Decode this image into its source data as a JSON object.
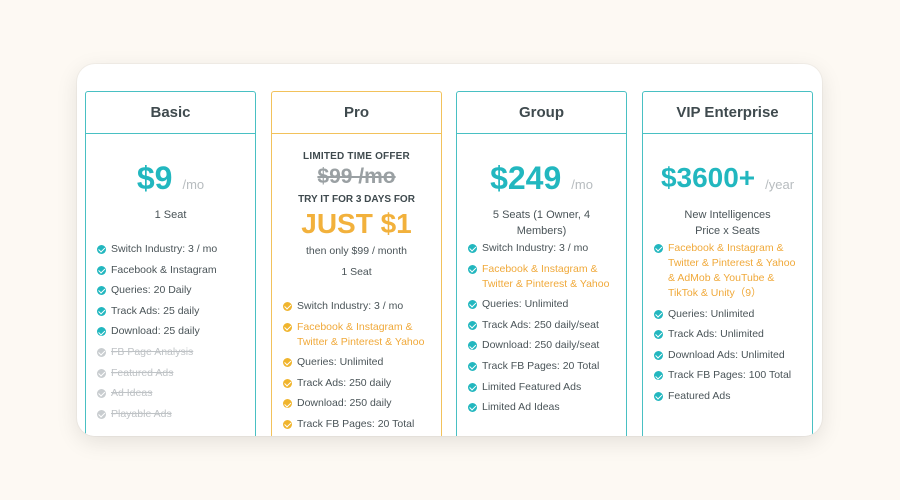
{
  "plans": [
    {
      "name": "Basic",
      "price": "$9",
      "period": "/mo",
      "seats": "1 Seat",
      "features": [
        {
          "text": "Switch Industry: 3 / mo",
          "state": "included"
        },
        {
          "text": "Facebook & Instagram",
          "state": "included"
        },
        {
          "text": "Queries: 20 Daily",
          "state": "included"
        },
        {
          "text": "Track Ads: 25 daily",
          "state": "included"
        },
        {
          "text": "Download: 25 daily",
          "state": "included"
        },
        {
          "text": "FB Page Analysis",
          "state": "excluded"
        },
        {
          "text": "Featured Ads",
          "state": "excluded"
        },
        {
          "text": "Ad Ideas",
          "state": "excluded"
        },
        {
          "text": "Playable Ads",
          "state": "excluded"
        }
      ]
    },
    {
      "name": "Pro",
      "offer_title": "LIMITED TIME OFFER",
      "old_price": "$99 /mo",
      "trial": "TRY IT FOR 3 DAYS FOR",
      "promo_price": "JUST $1",
      "then": "then only $99 / month",
      "seats": "1 Seat",
      "features": [
        {
          "text": "Switch Industry: 3 / mo",
          "state": "included"
        },
        {
          "text": "Facebook & Instagram & Twitter & Pinterest & Yahoo",
          "state": "highlight"
        },
        {
          "text": "Queries: Unlimited",
          "state": "included"
        },
        {
          "text": "Track Ads: 250 daily",
          "state": "included"
        },
        {
          "text": "Download: 250 daily",
          "state": "included"
        },
        {
          "text": "Track FB Pages: 20 Total",
          "state": "included"
        }
      ]
    },
    {
      "name": "Group",
      "price": "$249",
      "period": "/mo",
      "seats": "5 Seats (1 Owner, 4 Members)",
      "features": [
        {
          "text": "Switch Industry: 3 / mo",
          "state": "included"
        },
        {
          "text": "Facebook & Instagram & Twitter & Pinterest & Yahoo",
          "state": "highlight"
        },
        {
          "text": "Queries: Unlimited",
          "state": "included"
        },
        {
          "text": "Track Ads: 250 daily/seat",
          "state": "included"
        },
        {
          "text": "Download: 250 daily/seat",
          "state": "included"
        },
        {
          "text": "Track FB Pages: 20 Total",
          "state": "included"
        },
        {
          "text": "Limited Featured Ads",
          "state": "included"
        },
        {
          "text": "Limited Ad Ideas",
          "state": "included"
        }
      ]
    },
    {
      "name": "VIP Enterprise",
      "price": "$3600+",
      "period": "/year",
      "seats_line1": "New Intelligences",
      "seats_line2": "Price x Seats",
      "features": [
        {
          "text": "Facebook & Instagram & Twitter & Pinterest & Yahoo & AdMob & YouTube & TikTok & Unity（9）",
          "state": "highlight"
        },
        {
          "text": "Queries: Unlimited",
          "state": "included"
        },
        {
          "text": "Track Ads: Unlimited",
          "state": "included"
        },
        {
          "text": "Download Ads: Unlimited",
          "state": "included"
        },
        {
          "text": "Track FB Pages: 100 Total",
          "state": "included"
        },
        {
          "text": "Featured Ads",
          "state": "included"
        }
      ]
    }
  ],
  "colors": {
    "teal": "#22b7bf",
    "gold": "#f0b52e",
    "orange_text": "#f0a93a",
    "muted": "#bfc3c6"
  },
  "icons": {
    "included": "check-circle-icon",
    "excluded": "check-circle-icon",
    "highlight": "check-circle-icon"
  }
}
